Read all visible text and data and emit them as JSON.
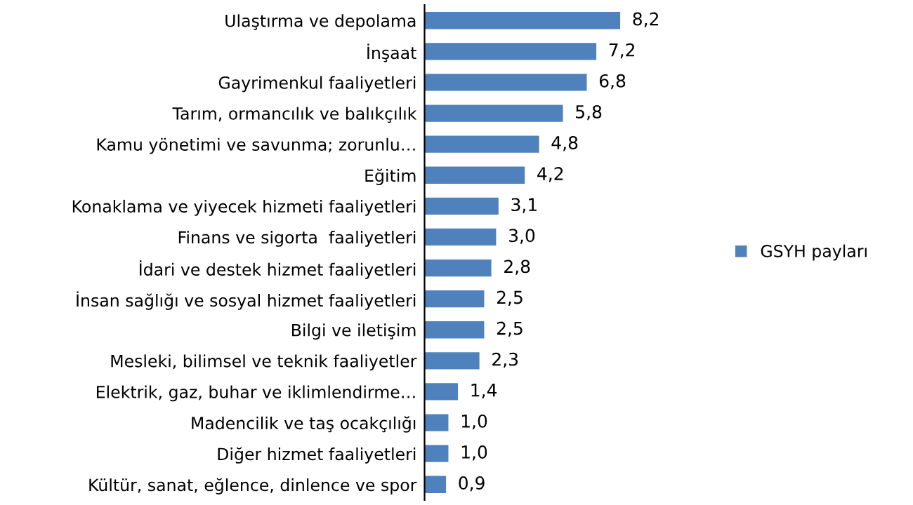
{
  "chart_data": {
    "type": "bar",
    "orientation": "horizontal",
    "legend": "right",
    "grid": false,
    "categories": [
      "Ulaştırma ve depolama",
      "İnşaat",
      "Gayrimenkul faaliyetleri",
      "Tarım, ormancılık ve balıkçılık",
      "Kamu yönetimi ve savunma; zorunlu…",
      "Eğitim",
      "Konaklama ve yiyecek hizmeti faaliyetleri",
      "Finans ve sigorta  faaliyetleri",
      "İdari ve destek hizmet faaliyetleri",
      "İnsan sağlığı ve sosyal hizmet faaliyetleri",
      "Bilgi ve iletişim",
      "Mesleki, bilimsel ve teknik faaliyetler",
      "Elektrik, gaz, buhar ve iklimlendirme…",
      "Madencilik ve taş ocakçılığı",
      "Diğer hizmet faaliyetleri",
      "Kültür, sanat, eğlence, dinlence ve spor"
    ],
    "series": [
      {
        "name": "GSYH payları",
        "color": "#4f81bd",
        "values": [
          8.2,
          7.2,
          6.8,
          5.8,
          4.8,
          4.2,
          3.1,
          3.0,
          2.8,
          2.5,
          2.5,
          2.3,
          1.4,
          1.0,
          1.0,
          0.9
        ],
        "value_labels": [
          "8,2",
          "7,2",
          "6,8",
          "5,8",
          "4,8",
          "4,2",
          "3,1",
          "3,0",
          "2,8",
          "2,5",
          "2,5",
          "2,3",
          "1,4",
          "1,0",
          "1,0",
          "0,9"
        ]
      }
    ]
  }
}
